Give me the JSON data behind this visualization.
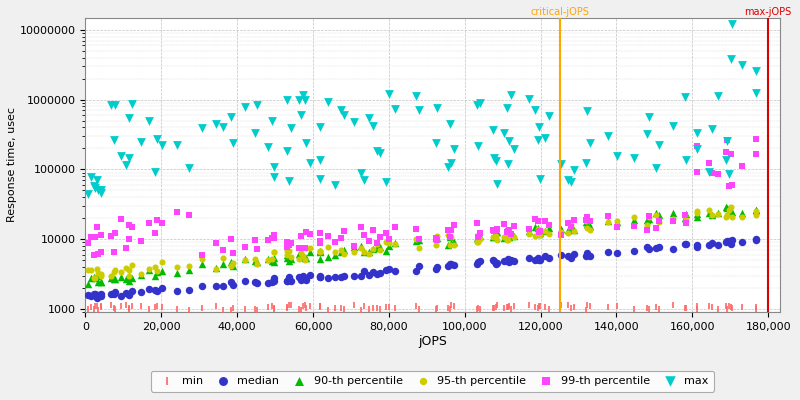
{
  "xlabel": "jOPS",
  "ylabel": "Response time, usec",
  "critical_jops": 125000,
  "max_jops": 180000,
  "xlim": [
    0,
    183000
  ],
  "ylim_log_min": 900,
  "ylim_log_max": 15000000,
  "background_color": "#f0f0f0",
  "plot_background": "#ffffff",
  "grid_color": "#bbbbbb",
  "critical_color": "#ffa500",
  "max_color": "#dd0000",
  "series": {
    "min": {
      "color": "#ff6666",
      "marker": "|",
      "markersize": 5,
      "label": "min"
    },
    "median": {
      "color": "#3333cc",
      "marker": "o",
      "markersize": 4,
      "label": "median"
    },
    "p90": {
      "color": "#00bb00",
      "marker": "^",
      "markersize": 4,
      "label": "90-th percentile"
    },
    "p95": {
      "color": "#cccc00",
      "marker": "o",
      "markersize": 3,
      "label": "95-th percentile"
    },
    "p99": {
      "color": "#ff44ff",
      "marker": "s",
      "markersize": 3,
      "label": "99-th percentile"
    },
    "max": {
      "color": "#00cccc",
      "marker": "v",
      "markersize": 5,
      "label": "max"
    }
  },
  "x_ticks": [
    0,
    20000,
    40000,
    60000,
    80000,
    100000,
    120000,
    140000,
    160000,
    180000
  ]
}
